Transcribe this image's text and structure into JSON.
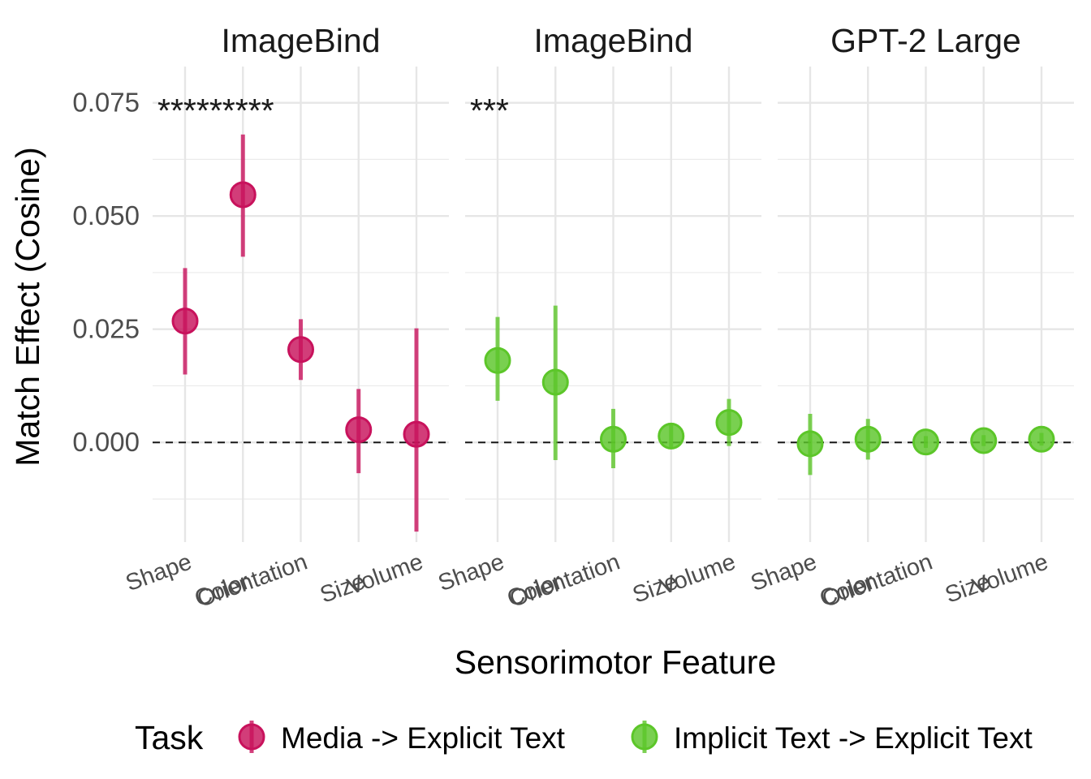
{
  "chart_data": {
    "type": "scatter",
    "ylabel": "Match Effect (Cosine)",
    "xlabel": "Sensorimotor Feature",
    "ylim": [
      -0.022,
      0.083
    ],
    "yticks": [
      0.0,
      0.025,
      0.05,
      0.075
    ],
    "ytick_labels": [
      "0.000",
      "0.025",
      "0.050",
      "0.075"
    ],
    "categories": [
      "Shape",
      "Color",
      "Orientation",
      "Size",
      "Volume"
    ],
    "reference_line": 0,
    "grid": true,
    "legend": {
      "title": "Task",
      "position": "bottom",
      "entries": [
        {
          "label": "Media -> Explicit Text",
          "color": "#c8125c"
        },
        {
          "label": "Implicit Text -> Explicit Text",
          "color": "#5cc629"
        }
      ]
    },
    "panels": [
      {
        "title": "ImageBind",
        "stars": "*********",
        "series": "Media -> Explicit Text",
        "color": "#c8125c",
        "points": [
          {
            "x": "Shape",
            "y": 0.0268,
            "lo": 0.015,
            "hi": 0.0385
          },
          {
            "x": "Color",
            "y": 0.0547,
            "lo": 0.041,
            "hi": 0.068
          },
          {
            "x": "Orientation",
            "y": 0.0205,
            "lo": 0.0138,
            "hi": 0.0272
          },
          {
            "x": "Size",
            "y": 0.0028,
            "lo": -0.0068,
            "hi": 0.0118
          },
          {
            "x": "Volume",
            "y": 0.0018,
            "lo": -0.0197,
            "hi": 0.0252
          }
        ]
      },
      {
        "title": "ImageBind",
        "stars": "***",
        "series": "Implicit Text -> Explicit Text",
        "color": "#5cc629",
        "points": [
          {
            "x": "Shape",
            "y": 0.0181,
            "lo": 0.0092,
            "hi": 0.0277
          },
          {
            "x": "Color",
            "y": 0.0133,
            "lo": -0.0039,
            "hi": 0.0302
          },
          {
            "x": "Orientation",
            "y": 0.0007,
            "lo": -0.0057,
            "hi": 0.0074
          },
          {
            "x": "Size",
            "y": 0.0014,
            "lo": -0.0015,
            "hi": 0.0042
          },
          {
            "x": "Volume",
            "y": 0.0044,
            "lo": -0.0008,
            "hi": 0.0096
          }
        ]
      },
      {
        "title": "GPT-2 Large",
        "stars": "",
        "series": "Implicit Text -> Explicit Text",
        "color": "#5cc629",
        "points": [
          {
            "x": "Shape",
            "y": -0.0003,
            "lo": -0.0072,
            "hi": 0.0063
          },
          {
            "x": "Color",
            "y": 0.0007,
            "lo": -0.0038,
            "hi": 0.0052
          },
          {
            "x": "Orientation",
            "y": 0.0001,
            "lo": -0.0012,
            "hi": 0.0014
          },
          {
            "x": "Size",
            "y": 0.0004,
            "lo": -0.0008,
            "hi": 0.0016
          },
          {
            "x": "Volume",
            "y": 0.0007,
            "lo": -0.0007,
            "hi": 0.0021
          }
        ]
      }
    ]
  }
}
